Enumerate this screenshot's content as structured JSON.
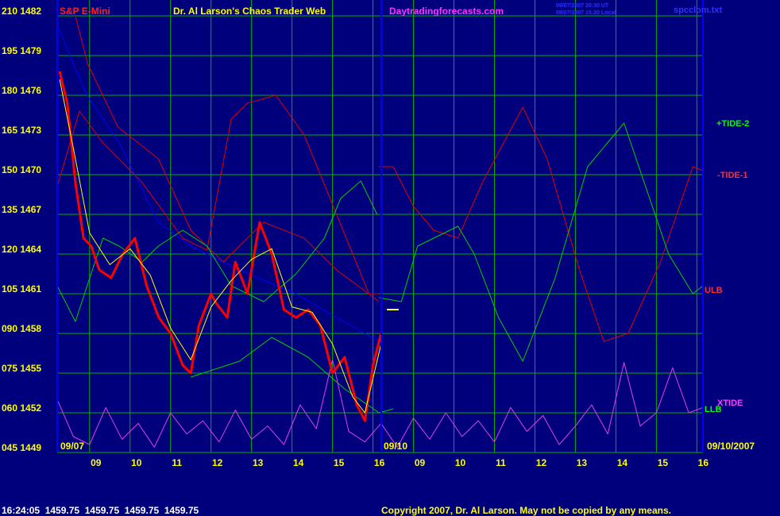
{
  "chart_data": {
    "type": "line",
    "title": "Dr. Al Larson's Chaos Trader Web",
    "instrument": "S&P E-Mini",
    "site": "Daytradingforecasts.com",
    "timestamps": [
      "09/07/2007 20:30 UT",
      "09/07/2007 15:20 Local"
    ],
    "file": "spcclom.txt",
    "date_start": "09/07",
    "date_mid": "09/10",
    "date_end": "09/10/2007",
    "status": "16:24:05  1459.75  1459.75  1459.75  1459.75",
    "copyright": "Copyright 2007, Dr. Al Larson. May not be copied by any means.",
    "xlim": [
      8.2,
      24.15
    ],
    "xticks": [
      {
        "value": 9,
        "label": "09"
      },
      10,
      11,
      12,
      13,
      14,
      15,
      16,
      {
        "value": 17,
        "label": "09"
      },
      {
        "value": 18,
        "label": "10"
      },
      {
        "value": 19,
        "label": "11"
      },
      {
        "value": 20,
        "label": "12"
      },
      {
        "value": 21,
        "label": "13"
      },
      {
        "value": 22,
        "label": "14"
      },
      {
        "value": 23,
        "label": "15"
      },
      {
        "value": 24,
        "label": "16"
      }
    ],
    "ylim": [
      45,
      216
    ],
    "yticks": [
      {
        "value": 210,
        "label": "210 1482"
      },
      {
        "value": 195,
        "label": "195 1479"
      },
      {
        "value": 180,
        "label": "180 1476"
      },
      {
        "value": 165,
        "label": "165 1473"
      },
      {
        "value": 150,
        "label": "150 1470"
      },
      {
        "value": 135,
        "label": "135 1467"
      },
      {
        "value": 120,
        "label": "120 1464"
      },
      {
        "value": 105,
        "label": "105 1461"
      },
      {
        "value": 90,
        "label": "090 1458"
      },
      {
        "value": 75,
        "label": "075 1455"
      },
      {
        "value": 60,
        "label": "060 1452"
      },
      {
        "value": 45,
        "label": "045 1449"
      }
    ],
    "grid": true,
    "grid_color": "#00b000",
    "series": [
      {
        "color": "#0000ff",
        "x": [
          8.2,
          8.55,
          8.94,
          9.73,
          10.7,
          11.5,
          12.7,
          14.1,
          15.1,
          16.15
        ],
        "values": [
          207,
          193.5,
          180,
          162,
          132,
          123,
          114,
          105,
          96,
          87
        ]
      },
      {
        "name": "ULB",
        "color": "#e00000",
        "x": [
          8.65,
          8.95,
          9.7,
          10.7,
          11.5,
          12.3,
          13.3,
          14.3,
          15.1,
          16.15
        ],
        "values": [
          210,
          192,
          168,
          156,
          129,
          117,
          132,
          126,
          114,
          102
        ]
      },
      {
        "name": "-TIDE-1",
        "color": "#e00000",
        "x": [
          8.2,
          8.75,
          9.33,
          10.3,
          11.3,
          11.9,
          12.5,
          12.9,
          13.6,
          14.3,
          15.1,
          15.9,
          16.15,
          null,
          16.15,
          16.5,
          17.0,
          17.5,
          18.1,
          18.7,
          19.7,
          20.3,
          21.1,
          21.7,
          22.3,
          23.1,
          23.9,
          24.15
        ],
        "values": [
          145.5,
          174,
          162,
          147,
          126,
          121.5,
          171,
          177,
          180,
          165,
          135,
          105,
          105,
          null,
          153,
          153,
          138,
          129,
          126,
          147,
          175.5,
          156,
          114,
          87,
          90,
          117,
          153,
          151.5
        ]
      },
      {
        "name": "+TIDE-2",
        "color": "#00d000",
        "x": [
          8.2,
          8.65,
          8.94,
          9.33,
          9.73,
          10.3,
          10.7,
          11.3,
          11.9,
          12.5,
          13.3,
          14.1,
          14.8,
          15.2,
          15.7,
          16.1,
          null,
          16.15,
          16.7,
          17.1,
          17.5,
          18.1,
          18.5,
          19.1,
          19.7,
          20.5,
          21.3,
          22.2,
          22.7,
          23.3,
          23.9,
          24.15
        ],
        "values": [
          108,
          94.5,
          108,
          126,
          123,
          117,
          123,
          129,
          123,
          108,
          102,
          112.5,
          126,
          141,
          147.6,
          135,
          null,
          103.5,
          102,
          123,
          126,
          130.5,
          120,
          96,
          79.5,
          111,
          153,
          169.5,
          147,
          120,
          105,
          108
        ]
      },
      {
        "name": "LLB",
        "color": "#00d000",
        "x": [
          11.5,
          12.7,
          13.5,
          14.4,
          15.3,
          16.15,
          16.5
        ],
        "values": [
          73.5,
          79.5,
          88.5,
          81,
          69,
          60,
          61.5
        ]
      },
      {
        "name": "XTIDE",
        "color": "#e040e0",
        "x": [
          8.2,
          8.6,
          9.0,
          9.4,
          9.8,
          10.2,
          10.6,
          11.0,
          11.4,
          11.8,
          12.2,
          12.6,
          13.0,
          13.4,
          13.8,
          14.2,
          14.6,
          15.0,
          15.4,
          15.8,
          16.2,
          16.6,
          17.0,
          17.4,
          17.8,
          18.2,
          18.6,
          19.0,
          19.4,
          19.8,
          20.2,
          20.6,
          21.0,
          21.4,
          21.8,
          22.2,
          22.6,
          23.0,
          23.4,
          23.8,
          24.15
        ],
        "values": [
          65,
          51,
          48,
          62,
          50,
          56,
          47,
          60,
          52,
          57,
          49,
          61,
          50,
          55,
          48,
          63,
          54,
          80,
          53,
          49,
          56,
          47,
          58,
          50,
          60,
          51,
          57,
          49,
          62,
          53,
          59,
          48,
          55,
          63,
          52,
          79,
          55,
          60,
          77,
          60,
          62
        ]
      },
      {
        "color": "#ff0000",
        "width": 3,
        "x": [
          8.26,
          8.45,
          8.65,
          8.85,
          9.04,
          9.24,
          9.53,
          9.82,
          10.12,
          10.41,
          10.71,
          11.0,
          11.3,
          11.5,
          11.7,
          12.0,
          12.1,
          12.4,
          12.6,
          12.9,
          13.2,
          13.5,
          13.8,
          14.1,
          14.4,
          14.7,
          15.0,
          15.3,
          15.6,
          15.8,
          16.0,
          16.2
        ],
        "values": [
          189,
          177,
          147,
          126,
          123,
          114,
          111,
          120,
          126,
          108,
          96,
          90,
          78,
          75,
          93,
          105,
          102,
          96,
          117,
          105,
          132,
          120,
          99,
          96,
          99,
          93,
          75,
          81,
          63,
          57,
          78,
          90
        ]
      },
      {
        "color": "#ffff00",
        "x": [
          8.26,
          8.6,
          9.0,
          9.5,
          10.0,
          10.5,
          11.0,
          11.5,
          12.0,
          12.5,
          13.0,
          13.5,
          14.0,
          14.5,
          15.0,
          15.5,
          15.8,
          16.2
        ],
        "values": [
          186,
          160,
          128,
          116,
          122,
          112,
          92,
          80,
          100,
          110,
          118,
          122,
          100,
          98,
          86,
          66,
          60,
          86
        ]
      }
    ]
  }
}
